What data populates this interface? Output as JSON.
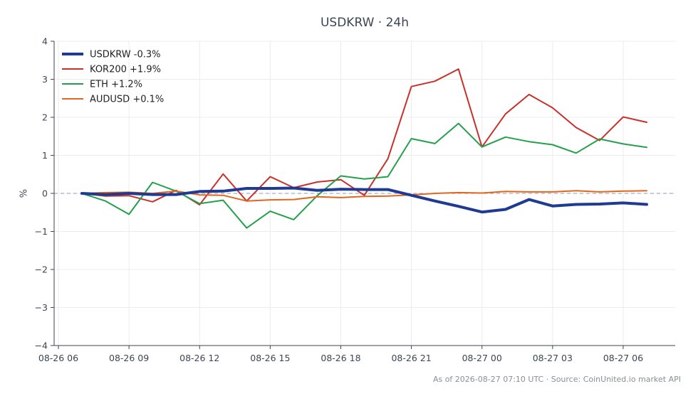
{
  "chart_data": {
    "type": "line",
    "title": "USDKRW · 24h",
    "xlabel": "",
    "ylabel": "%",
    "x": [
      "08-26 07",
      "08-26 08",
      "08-26 09",
      "08-26 10",
      "08-26 11",
      "08-26 12",
      "08-26 13",
      "08-26 14",
      "08-26 15",
      "08-26 16",
      "08-26 17",
      "08-26 18",
      "08-26 19",
      "08-26 20",
      "08-26 21",
      "08-26 22",
      "08-26 23",
      "08-27 00",
      "08-27 01",
      "08-27 02",
      "08-27 03",
      "08-27 04",
      "08-27 05",
      "08-27 06",
      "08-27 07"
    ],
    "x_ticks": [
      "08-26 06",
      "08-26 09",
      "08-26 12",
      "08-26 15",
      "08-26 18",
      "08-26 21",
      "08-27 00",
      "08-27 03",
      "08-27 06"
    ],
    "ylim": [
      -4,
      4
    ],
    "y_ticks": [
      "−4",
      "−3",
      "−2",
      "−1",
      "0",
      "1",
      "2",
      "3",
      "4"
    ],
    "grid": true,
    "zero_line": true,
    "legend_position": "top-left",
    "series": [
      {
        "name": "USDKRW -0.3%",
        "color": "#1f3a93",
        "width": 4,
        "values": [
          0.0,
          -0.03,
          0.0,
          -0.03,
          -0.03,
          0.05,
          0.06,
          0.13,
          0.13,
          0.14,
          0.08,
          0.11,
          0.1,
          0.1,
          -0.05,
          -0.2,
          -0.34,
          -0.49,
          -0.42,
          -0.16,
          -0.33,
          -0.29,
          -0.28,
          -0.25,
          -0.29
        ]
      },
      {
        "name": "KOR200 +1.9%",
        "color": "#c8312b",
        "width": 2,
        "values": [
          0.0,
          -0.07,
          -0.06,
          -0.22,
          0.08,
          -0.3,
          0.51,
          -0.2,
          0.44,
          0.15,
          0.3,
          0.36,
          -0.05,
          0.91,
          2.81,
          2.95,
          3.27,
          1.22,
          2.09,
          2.6,
          2.25,
          1.73,
          1.39,
          2.01,
          1.87
        ]
      },
      {
        "name": "ETH +1.2%",
        "color": "#23a04b",
        "width": 2,
        "values": [
          0.0,
          -0.2,
          -0.55,
          0.29,
          0.06,
          -0.27,
          -0.18,
          -0.91,
          -0.47,
          -0.69,
          -0.06,
          0.46,
          0.38,
          0.44,
          1.44,
          1.31,
          1.84,
          1.22,
          1.48,
          1.36,
          1.28,
          1.06,
          1.43,
          1.3,
          1.21
        ]
      },
      {
        "name": "AUDUSD +0.1%",
        "color": "#e0671d",
        "width": 2,
        "values": [
          0.0,
          0.02,
          0.03,
          0.0,
          0.06,
          -0.04,
          -0.05,
          -0.2,
          -0.17,
          -0.16,
          -0.09,
          -0.11,
          -0.08,
          -0.07,
          -0.04,
          0.0,
          0.02,
          0.01,
          0.05,
          0.04,
          0.04,
          0.07,
          0.04,
          0.06,
          0.07
        ]
      }
    ]
  },
  "footnote": "As of 2026-08-27 07:10 UTC · Source: CoinUnited.io market API"
}
